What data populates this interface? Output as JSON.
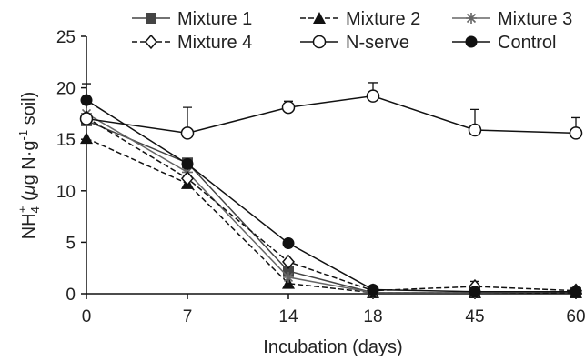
{
  "chart_data": {
    "type": "line",
    "categories": [
      "0",
      "7",
      "14",
      "18",
      "45",
      "60"
    ],
    "xlabel": "Incubation (days)",
    "ylabel": {
      "main": "NH",
      "sub": "4",
      "sup": "+",
      "unit_open": " (",
      "mu": "μ",
      "unit_mid": "g N·g",
      "exp": "-1",
      "unit_close": " soil)"
    },
    "ylim": [
      0,
      25
    ],
    "yticks": [
      "0",
      "5",
      "10",
      "15",
      "20",
      "25"
    ],
    "grid": false,
    "legend_position": "top",
    "series": [
      {
        "name": "Mixture 1",
        "values": [
          16.8,
          12.7,
          2.2,
          0.1,
          0.1,
          0.1
        ],
        "marker": "square",
        "dash": "solid",
        "color": "#444444",
        "errors": [
          0,
          0,
          0,
          0,
          0,
          0
        ]
      },
      {
        "name": "Mixture 2",
        "values": [
          15.1,
          10.7,
          1.0,
          0.1,
          0.1,
          0.1
        ],
        "marker": "triangle",
        "dash": "dashed",
        "color": "#111111",
        "errors": [
          0,
          0,
          0,
          0,
          0,
          0
        ]
      },
      {
        "name": "Mixture 3",
        "values": [
          17.5,
          11.8,
          1.6,
          0.1,
          0.1,
          0.2
        ],
        "marker": "star",
        "dash": "solid",
        "color": "#666666",
        "errors": [
          0,
          0,
          0,
          0,
          0,
          0
        ]
      },
      {
        "name": "Mixture 4",
        "values": [
          17.1,
          11.2,
          3.1,
          0.3,
          0.7,
          0.3
        ],
        "marker": "diamond",
        "dash": "dashed",
        "color": "#111111",
        "errors": [
          0,
          0,
          0,
          0,
          0.5,
          0
        ]
      },
      {
        "name": "N-serve",
        "values": [
          17.0,
          15.6,
          18.1,
          19.2,
          15.9,
          15.6
        ],
        "marker": "circle-open",
        "dash": "solid",
        "color": "#111111",
        "errors": [
          0,
          2.5,
          0.6,
          1.3,
          2.0,
          1.5
        ]
      },
      {
        "name": "Control",
        "values": [
          18.8,
          12.6,
          4.9,
          0.4,
          0.2,
          0.2
        ],
        "marker": "circle-filled",
        "dash": "solid",
        "color": "#111111",
        "errors": [
          1.6,
          0,
          0,
          0,
          0,
          0
        ]
      }
    ]
  }
}
